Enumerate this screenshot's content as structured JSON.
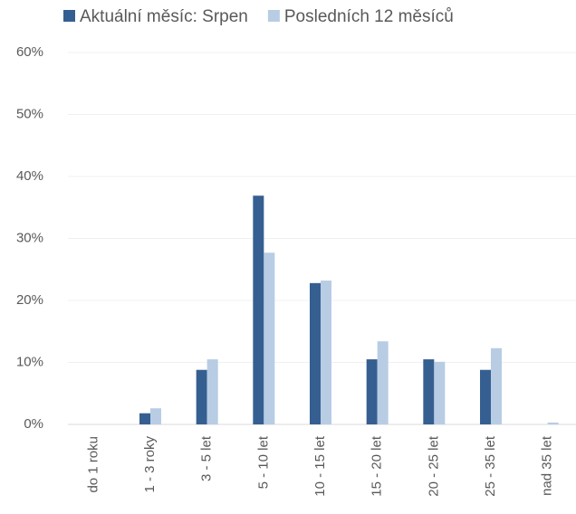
{
  "chart_data": {
    "type": "bar",
    "categories": [
      "do 1 roku",
      "1 - 3 roky",
      "3 - 5 let",
      "5 - 10 let",
      "10 - 15 let",
      "15 - 20 let",
      "20 - 25 let",
      "25 - 35 let",
      "nad 35 let"
    ],
    "series": [
      {
        "name": "Aktuální měsíc: Srpen",
        "color": "#365f91",
        "values": [
          0,
          1.8,
          8.8,
          36.9,
          22.8,
          10.5,
          10.5,
          8.8,
          0
        ]
      },
      {
        "name": "Posledních 12 měsíců",
        "color": "#b8cce4",
        "values": [
          0,
          2.6,
          10.5,
          27.7,
          23.2,
          13.4,
          10.1,
          12.3,
          0.3
        ]
      }
    ],
    "ylim": [
      0,
      60
    ],
    "yticks": [
      {
        "value": 0,
        "label": "0%"
      },
      {
        "value": 10,
        "label": "10%"
      },
      {
        "value": 20,
        "label": "20%"
      },
      {
        "value": 30,
        "label": "30%"
      },
      {
        "value": 40,
        "label": "40%"
      },
      {
        "value": 50,
        "label": "50%"
      },
      {
        "value": 60,
        "label": "60%"
      }
    ],
    "grid": true,
    "legend": "top"
  }
}
